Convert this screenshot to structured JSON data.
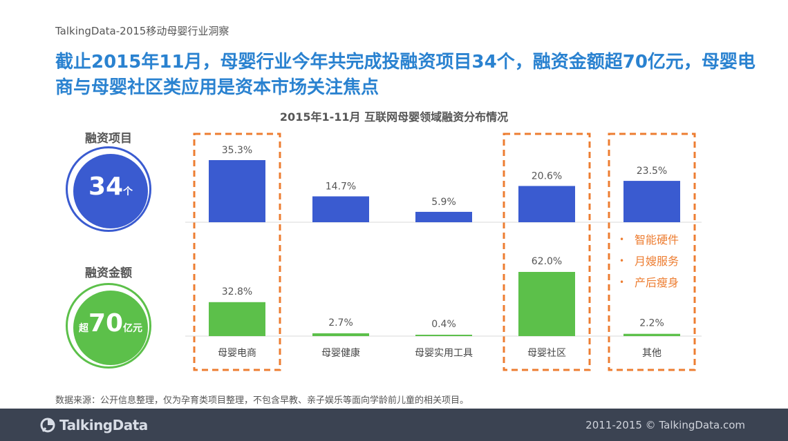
{
  "header": {
    "report_label": "TalkingData-2015移动母婴行业洞察",
    "headline": "截止2015年11月，母婴行业今年共完成投融资项目34个，融资金额超70亿元，母婴电商与母婴社区类应用是资本市场关注焦点"
  },
  "kpis": {
    "projects_label": "融资项目",
    "projects_value": "34",
    "projects_unit": "个",
    "amount_label": "融资金额",
    "amount_prefix": "超",
    "amount_value": "70",
    "amount_unit": "亿元"
  },
  "chart_data": {
    "type": "bar",
    "title": "2015年1-11月  互联网母婴领域融资分布情况",
    "categories": [
      "母婴电商",
      "母婴健康",
      "母婴实用工具",
      "母婴社区",
      "其他"
    ],
    "series": [
      {
        "values": [
          35.3,
          14.7,
          5.9,
          20.6,
          23.5
        ],
        "labels": [
          "35.3%",
          "14.7%",
          "5.9%",
          "20.6%",
          "23.5%"
        ],
        "color": "#3a5bd0"
      },
      {
        "values": [
          32.8,
          2.7,
          0.4,
          62.0,
          2.2
        ],
        "labels": [
          "32.8%",
          "2.7%",
          "0.4%",
          "62.0%",
          "2.2%"
        ],
        "color": "#5cc04a"
      }
    ],
    "highlighted_categories": [
      "母婴电商",
      "母婴社区",
      "其他"
    ],
    "highlight_color": "#ed7d31",
    "ylim": [
      0,
      100
    ]
  },
  "other_notes": [
    "智能硬件",
    "月嫂服务",
    "产后瘦身"
  ],
  "source_note": "数据来源：公开信息整理，仅为孕育类项目整理，不包含早教、亲子娱乐等面向学龄前儿童的相关项目。",
  "footer": {
    "logo_text": "TalkingData",
    "copyright": "2011-2015 © TalkingData.com"
  }
}
